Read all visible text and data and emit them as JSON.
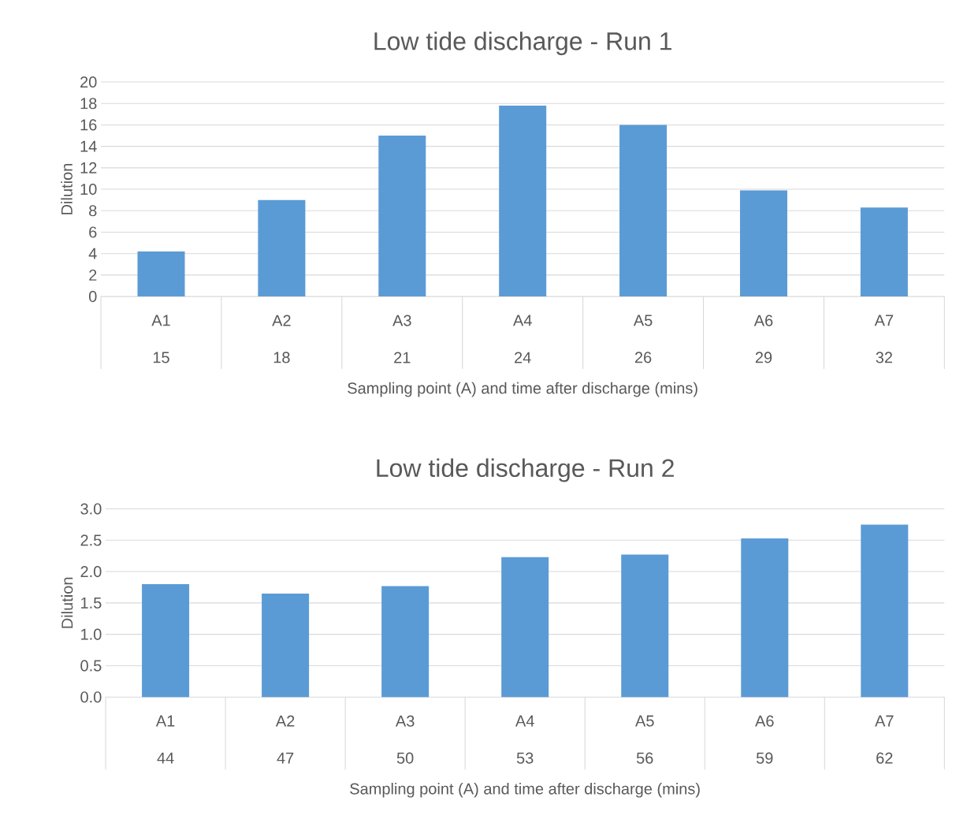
{
  "chart_data": [
    {
      "type": "bar",
      "title": "Low tide discharge - Run 1",
      "xlabel": "Sampling point (A) and time after discharge (mins)",
      "ylabel": "Dilution",
      "categories": [
        "A1",
        "A2",
        "A3",
        "A4",
        "A5",
        "A6",
        "A7"
      ],
      "annotations": [
        "15",
        "18",
        "21",
        "24",
        "26",
        "29",
        "32"
      ],
      "values": [
        4.2,
        9.0,
        15.0,
        17.8,
        16.0,
        9.9,
        8.3
      ],
      "color": "#5b9bd5",
      "ylim": [
        0,
        20
      ],
      "yticks": [
        0,
        2,
        4,
        6,
        8,
        10,
        12,
        14,
        16,
        18,
        20
      ],
      "grid": "y"
    },
    {
      "type": "bar",
      "title": "Low tide discharge - Run 2",
      "xlabel": "Sampling point (A) and time after discharge (mins)",
      "ylabel": "Dilution",
      "categories": [
        "A1",
        "A2",
        "A3",
        "A4",
        "A5",
        "A6",
        "A7"
      ],
      "annotations": [
        "44",
        "47",
        "50",
        "53",
        "56",
        "59",
        "62"
      ],
      "values": [
        1.8,
        1.65,
        1.77,
        2.23,
        2.27,
        2.53,
        2.75
      ],
      "color": "#5b9bd5",
      "ylim": [
        0,
        3
      ],
      "yticks": [
        {
          "value": 0,
          "label": "0.0"
        },
        {
          "value": 0.5,
          "label": "0.5"
        },
        {
          "value": 1,
          "label": "1.0"
        },
        {
          "value": 1.5,
          "label": "1.5"
        },
        {
          "value": 2,
          "label": "2.0"
        },
        {
          "value": 2.5,
          "label": "2.5"
        },
        {
          "value": 3,
          "label": "3.0"
        }
      ],
      "grid": "y"
    }
  ]
}
